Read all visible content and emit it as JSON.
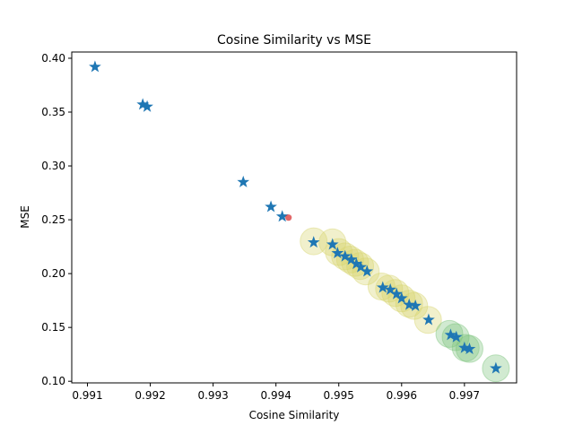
{
  "chart_data": {
    "type": "scatter",
    "title": "Cosine Similarity vs MSE",
    "xlabel": "Cosine Similarity",
    "ylabel": "MSE",
    "xlim": [
      0.99075,
      0.99783
    ],
    "ylim": [
      0.0985,
      0.4058
    ],
    "xticks": [
      0.991,
      0.992,
      0.993,
      0.994,
      0.995,
      0.996,
      0.997
    ],
    "xtick_labels": [
      "0.991",
      "0.992",
      "0.993",
      "0.994",
      "0.995",
      "0.996",
      "0.997"
    ],
    "yticks": [
      0.1,
      0.15,
      0.2,
      0.25,
      0.3,
      0.35,
      0.4
    ],
    "ytick_labels": [
      "0.10",
      "0.15",
      "0.20",
      "0.25",
      "0.30",
      "0.35",
      "0.40"
    ],
    "grid": false,
    "colors": {
      "star": "#1f77b4",
      "highlight_point": "#d62728",
      "circle_yellow": "#d8d56e",
      "circle_green": "#7cc47c"
    },
    "stars": [
      [
        0.99112,
        0.392
      ],
      [
        0.99188,
        0.357
      ],
      [
        0.99195,
        0.355
      ],
      [
        0.99348,
        0.285
      ],
      [
        0.99392,
        0.262
      ],
      [
        0.9941,
        0.253
      ],
      [
        0.9946,
        0.229
      ],
      [
        0.9949,
        0.227
      ],
      [
        0.99498,
        0.219
      ],
      [
        0.9951,
        0.216
      ],
      [
        0.9952,
        0.213
      ],
      [
        0.99528,
        0.209
      ],
      [
        0.99535,
        0.206
      ],
      [
        0.99545,
        0.202
      ],
      [
        0.9957,
        0.187
      ],
      [
        0.99582,
        0.185
      ],
      [
        0.99592,
        0.181
      ],
      [
        0.996,
        0.177
      ],
      [
        0.99612,
        0.171
      ],
      [
        0.99622,
        0.17
      ],
      [
        0.99643,
        0.157
      ],
      [
        0.99678,
        0.143
      ],
      [
        0.99687,
        0.141
      ],
      [
        0.997,
        0.131
      ],
      [
        0.99708,
        0.13
      ],
      [
        0.9975,
        0.112
      ]
    ],
    "highlight_point": [
      0.9942,
      0.252
    ],
    "circles": [
      {
        "x": 0.9946,
        "y": 0.23,
        "color": "yellow"
      },
      {
        "x": 0.9949,
        "y": 0.229,
        "color": "yellow"
      },
      {
        "x": 0.995,
        "y": 0.22,
        "color": "yellow"
      },
      {
        "x": 0.9951,
        "y": 0.216,
        "color": "yellow"
      },
      {
        "x": 0.99518,
        "y": 0.213,
        "color": "yellow"
      },
      {
        "x": 0.99526,
        "y": 0.21,
        "color": "yellow"
      },
      {
        "x": 0.99534,
        "y": 0.207,
        "color": "yellow"
      },
      {
        "x": 0.99543,
        "y": 0.202,
        "color": "yellow"
      },
      {
        "x": 0.99568,
        "y": 0.188,
        "color": "yellow"
      },
      {
        "x": 0.9958,
        "y": 0.186,
        "color": "yellow"
      },
      {
        "x": 0.9959,
        "y": 0.182,
        "color": "yellow"
      },
      {
        "x": 0.996,
        "y": 0.177,
        "color": "yellow"
      },
      {
        "x": 0.99612,
        "y": 0.172,
        "color": "yellow"
      },
      {
        "x": 0.9962,
        "y": 0.17,
        "color": "yellow"
      },
      {
        "x": 0.99642,
        "y": 0.157,
        "color": "yellow"
      },
      {
        "x": 0.99676,
        "y": 0.144,
        "color": "green"
      },
      {
        "x": 0.99686,
        "y": 0.141,
        "color": "green"
      },
      {
        "x": 0.99702,
        "y": 0.131,
        "color": "green"
      },
      {
        "x": 0.99708,
        "y": 0.13,
        "color": "green"
      },
      {
        "x": 0.9975,
        "y": 0.112,
        "color": "green"
      }
    ]
  }
}
